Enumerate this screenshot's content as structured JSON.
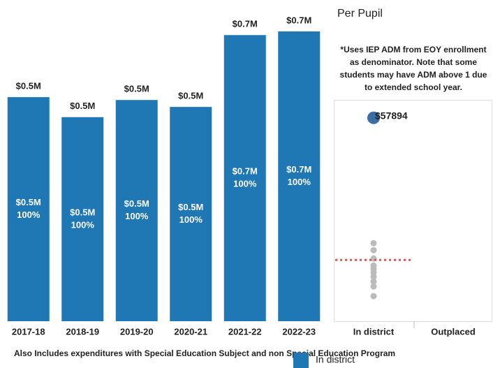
{
  "chart_data": [
    {
      "type": "bar",
      "categories": [
        "2017-18",
        "2018-19",
        "2019-20",
        "2020-21",
        "2021-22",
        "2022-23"
      ],
      "series": [
        {
          "name": "In district",
          "color": "#1f77b4",
          "values": [
            0.549,
            0.5,
            0.542,
            0.525,
            0.701,
            0.71
          ],
          "value_labels": [
            "$0.5M",
            "$0.5M",
            "$0.5M",
            "$0.5M",
            "$0.7M",
            "$0.7M"
          ],
          "percents": [
            100,
            100,
            100,
            100,
            100,
            100
          ],
          "percent_labels": [
            "100%",
            "100%",
            "100%",
            "100%",
            "100%",
            "100%"
          ]
        }
      ],
      "ylim": [
        0,
        0.71
      ],
      "footnote": "Also Includes expenditures with Special Education Subject and non Special Education Program"
    },
    {
      "type": "strip",
      "title": "Per Pupil",
      "note": [
        "*Uses IEP ADM from EOY enrollment",
        "as denominator. Note that some",
        "students may have ADM above 1 due",
        "to extended school year."
      ],
      "categories": [
        "In district",
        "Outplaced"
      ],
      "highlight": {
        "value": 57894,
        "label": "$57894",
        "color": "#3a6ea5"
      },
      "points": {
        "color": "#bbbbbb",
        "values": [
          22200,
          20200,
          17850,
          15860,
          14870,
          13880,
          12690,
          11300,
          9900,
          7140
        ]
      },
      "reference_line": {
        "value": 17450,
        "color": "#e05555"
      },
      "ylim": [
        0,
        63000
      ]
    }
  ]
}
